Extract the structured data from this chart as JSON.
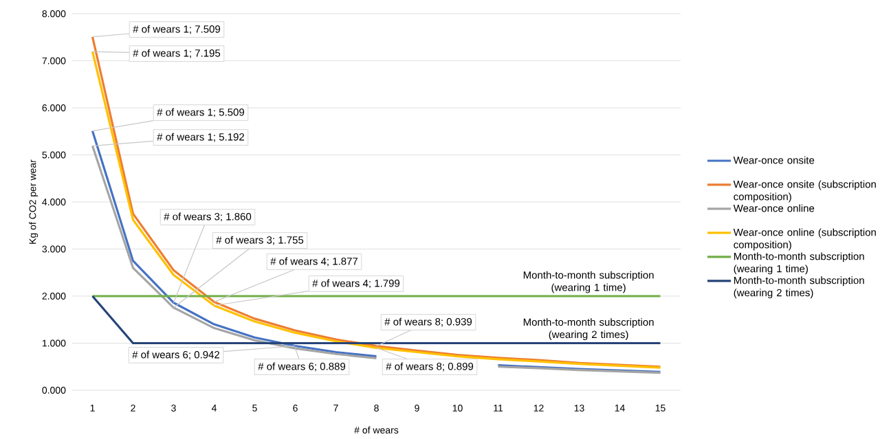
{
  "chart_data": {
    "type": "line",
    "xlabel": "# of wears",
    "ylabel": "Kg of CO2 per wear",
    "x": [
      1,
      2,
      3,
      4,
      5,
      6,
      7,
      8,
      9,
      10,
      11,
      12,
      13,
      14,
      15
    ],
    "xlim": [
      0.5,
      15.5
    ],
    "xticks": [
      1,
      2,
      3,
      4,
      5,
      6,
      7,
      8,
      9,
      10,
      11,
      12,
      13,
      14,
      15
    ],
    "ylim": [
      0,
      8
    ],
    "yticks": [
      {
        "value": 0,
        "label": "0.000"
      },
      {
        "value": 1,
        "label": "1.000"
      },
      {
        "value": 2,
        "label": "2.000"
      },
      {
        "value": 3,
        "label": "3.000"
      },
      {
        "value": 4,
        "label": "4.000"
      },
      {
        "value": 5,
        "label": "5.000"
      },
      {
        "value": 6,
        "label": "6.000"
      },
      {
        "value": 7,
        "label": "7.000"
      },
      {
        "value": 8,
        "label": "8.000"
      }
    ],
    "grid": "y",
    "legend": "right",
    "series": [
      {
        "name": "Wear-once onsite",
        "color": "#4472c4",
        "values": [
          5.509,
          2.75,
          1.86,
          1.4,
          1.12,
          0.942,
          0.81,
          0.72,
          null,
          null,
          0.53,
          0.49,
          0.45,
          0.42,
          0.39
        ]
      },
      {
        "name": "Wear-once onsite (subscription composition)",
        "color": "#ed7d31",
        "values": [
          7.509,
          3.75,
          2.55,
          1.877,
          1.52,
          1.27,
          1.08,
          0.939,
          0.84,
          0.75,
          0.69,
          0.64,
          0.58,
          0.54,
          0.5
        ]
      },
      {
        "name": "Wear-once online",
        "color": "#a5a5a5",
        "values": [
          5.192,
          2.6,
          1.755,
          1.32,
          1.06,
          0.889,
          0.77,
          0.68,
          null,
          null,
          0.5,
          0.47,
          0.43,
          0.4,
          0.37
        ]
      },
      {
        "name": "Wear-once online (subscription composition)",
        "color": "#ffc000",
        "values": [
          7.195,
          3.62,
          2.45,
          1.799,
          1.46,
          1.22,
          1.04,
          0.899,
          0.81,
          0.72,
          0.66,
          0.61,
          0.56,
          0.52,
          0.48
        ]
      },
      {
        "name": "Month-to-month subscription (wearing 1 time)",
        "color": "#70ad47",
        "values": [
          2,
          2,
          2,
          2,
          2,
          2,
          2,
          2,
          2,
          2,
          2,
          2,
          2,
          2,
          2
        ]
      },
      {
        "name": "Month-to-month subscription (wearing 2 times)",
        "color": "#264478",
        "values": [
          2,
          1,
          1,
          1,
          1,
          1,
          1,
          1,
          1,
          1,
          1,
          1,
          1,
          1,
          1
        ]
      }
    ],
    "annotations": [
      {
        "text": "# of wears 1; 7.509",
        "x": 1,
        "y": 7.509
      },
      {
        "text": "# of wears 1; 7.195",
        "x": 1,
        "y": 7.195
      },
      {
        "text": "# of wears 1; 5.509",
        "x": 1,
        "y": 5.509
      },
      {
        "text": "# of wears 1; 5.192",
        "x": 1,
        "y": 5.192
      },
      {
        "text": "# of wears 3; 1.860",
        "x": 3,
        "y": 1.86
      },
      {
        "text": "# of wears 3; 1.755",
        "x": 3,
        "y": 1.755
      },
      {
        "text": "# of wears 4; 1.877",
        "x": 4,
        "y": 1.877
      },
      {
        "text": "# of wears 4; 1.799",
        "x": 4,
        "y": 1.799
      },
      {
        "text": "# of wears 6; 0.942",
        "x": 6,
        "y": 0.942
      },
      {
        "text": "# of wears 6; 0.889",
        "x": 6,
        "y": 0.889
      },
      {
        "text": "# of wears 8; 0.939",
        "x": 8,
        "y": 0.939
      },
      {
        "text": "# of wears 8; 0.899",
        "x": 8,
        "y": 0.899
      },
      {
        "text": "Month-to-month subscription (wearing 1 time)",
        "x": 15,
        "y": 2
      },
      {
        "text": "Month-to-month subscription (wearing 2 times)",
        "x": 15,
        "y": 1
      }
    ]
  }
}
